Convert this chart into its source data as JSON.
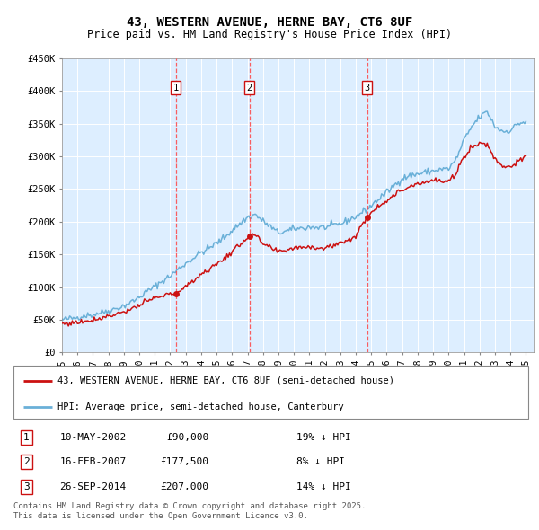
{
  "title": "43, WESTERN AVENUE, HERNE BAY, CT6 8UF",
  "subtitle": "Price paid vs. HM Land Registry's House Price Index (HPI)",
  "legend_line1": "43, WESTERN AVENUE, HERNE BAY, CT6 8UF (semi-detached house)",
  "legend_line2": "HPI: Average price, semi-detached house, Canterbury",
  "footnote": "Contains HM Land Registry data © Crown copyright and database right 2025.\nThis data is licensed under the Open Government Licence v3.0.",
  "sales": [
    {
      "label": "1",
      "date": "10-MAY-2002",
      "price": "£90,000",
      "note": "19% ↓ HPI",
      "year": 2002.36,
      "val": 90000
    },
    {
      "label": "2",
      "date": "16-FEB-2007",
      "price": "£177,500",
      "note": "8% ↓ HPI",
      "year": 2007.12,
      "val": 177500
    },
    {
      "label": "3",
      "date": "26-SEP-2014",
      "price": "£207,000",
      "note": "14% ↓ HPI",
      "year": 2014.73,
      "val": 207000
    }
  ],
  "hpi_color": "#6ab0d8",
  "price_color": "#cc1111",
  "background_color": "#ddeeff",
  "ylim": [
    0,
    450000
  ],
  "xlim_start": 1995.0,
  "xlim_end": 2025.5,
  "yticks": [
    0,
    50000,
    100000,
    150000,
    200000,
    250000,
    300000,
    350000,
    400000,
    450000
  ],
  "ylabels": [
    "£0",
    "£50K",
    "£100K",
    "£150K",
    "£200K",
    "£250K",
    "£300K",
    "£350K",
    "£400K",
    "£450K"
  ]
}
